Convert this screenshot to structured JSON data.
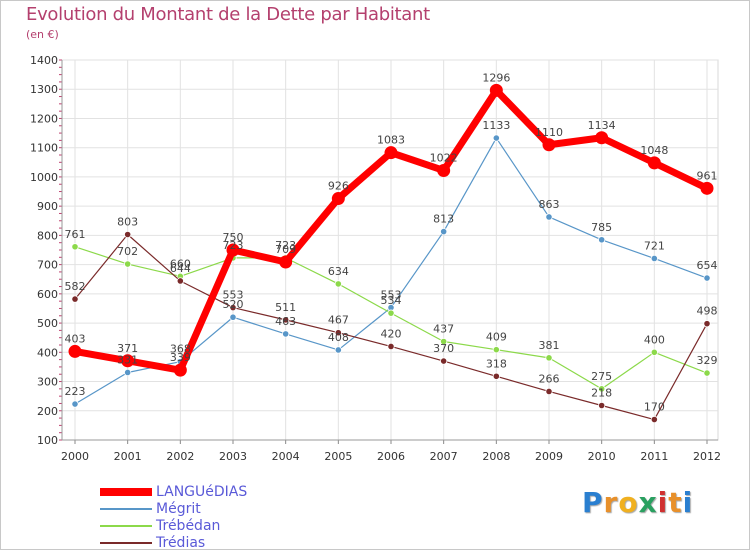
{
  "chart_data": {
    "type": "line",
    "title": "Evolution du Montant de la Dette par Habitant",
    "subtitle": "(en €)",
    "xlabel": "",
    "ylabel": "",
    "ylim": [
      100,
      1400
    ],
    "yticks": [
      100,
      200,
      300,
      400,
      500,
      600,
      700,
      800,
      900,
      1000,
      1100,
      1200,
      1300,
      1400
    ],
    "x": [
      "2000",
      "2001",
      "2002",
      "2003",
      "2004",
      "2005",
      "2006",
      "2007",
      "2008",
      "2009",
      "2010",
      "2011",
      "2012"
    ],
    "grid": true,
    "legend_position": "bottom-left",
    "series": [
      {
        "name": "LANGUéDIAS",
        "color": "#ff0000",
        "values": [
          403,
          371,
          339,
          750,
          709,
          926,
          1083,
          1022,
          1296,
          1110,
          1134,
          1048,
          961
        ],
        "labels": [
          "403",
          "371",
          "339",
          "750",
          "709",
          "926",
          "1083",
          "1022",
          "1296",
          "1110",
          "1134",
          "1048",
          "961"
        ]
      },
      {
        "name": "Mégrit",
        "color": "#5896c8",
        "values": [
          223,
          331,
          368,
          520,
          463,
          408,
          553,
          813,
          1133,
          863,
          785,
          721,
          654
        ],
        "labels": [
          "223",
          "331",
          "368",
          "520",
          "463",
          "408",
          "553",
          "813",
          "1133",
          "863",
          "785",
          "721",
          "654"
        ]
      },
      {
        "name": "Trébédan",
        "color": "#8cd94a",
        "values": [
          761,
          702,
          660,
          723,
          723,
          634,
          534,
          437,
          409,
          381,
          275,
          400,
          329
        ],
        "labels": [
          "761",
          "702",
          "660",
          "723",
          "723",
          "634",
          "534",
          "437",
          "409",
          "381",
          "275",
          "400",
          "329"
        ]
      },
      {
        "name": "Trédias",
        "color": "#7a2a2a",
        "values": [
          582,
          803,
          644,
          553,
          511,
          467,
          420,
          370,
          318,
          266,
          218,
          170,
          498
        ],
        "labels": [
          "582",
          "803",
          "644",
          "553",
          "511",
          "467",
          "420",
          "370",
          "318",
          "266",
          "218",
          "170",
          "498"
        ]
      }
    ]
  },
  "logo": {
    "letters": [
      "P",
      "r",
      "o",
      "x",
      "i",
      "t",
      "i"
    ],
    "colors": [
      "#2a7fd0",
      "#e8902a",
      "#f0b020",
      "#2aa060",
      "#d03030",
      "#e8902a",
      "#2a7fd0"
    ]
  }
}
